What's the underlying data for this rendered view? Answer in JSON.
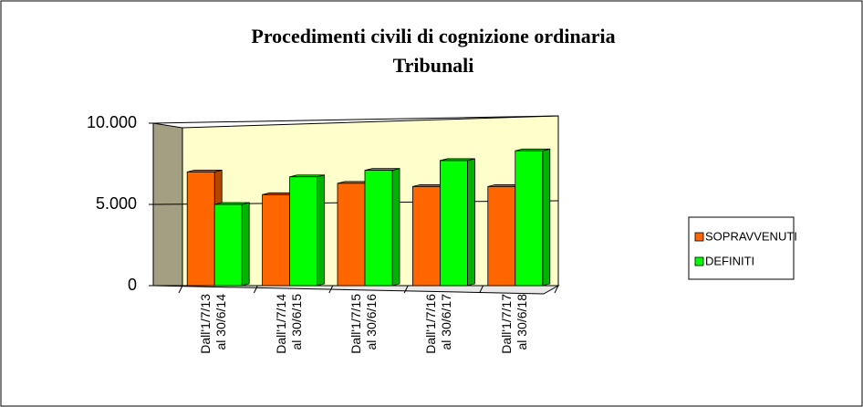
{
  "chart_data": {
    "type": "bar",
    "title": "Procedimenti civili  di cognizione ordinaria",
    "subtitle": "Tribunali",
    "categories": [
      "Dall'1/7/13\nal 30/6/14",
      "Dall'1/7/14\nal 30/6/15",
      "Dall'1/7/15\nal 30/6/16",
      "Dall'1/7/16\nal 30/6/17",
      "Dall'1/7/17\nal 30/6/18"
    ],
    "series": [
      {
        "name": "SOPRAVVENUTI",
        "color": "#ff6600",
        "values": [
          7000,
          5600,
          6300,
          6100,
          6100
        ]
      },
      {
        "name": "DEFINITI",
        "color": "#00ff00",
        "values": [
          5000,
          6700,
          7100,
          7700,
          8300
        ]
      }
    ],
    "ylim": [
      0,
      10000
    ],
    "yticks": [
      {
        "value": 0,
        "label": "0"
      },
      {
        "value": 5000,
        "label": "5.000"
      },
      {
        "value": 10000,
        "label": "10.000"
      }
    ],
    "grid": true,
    "legend": "right"
  }
}
